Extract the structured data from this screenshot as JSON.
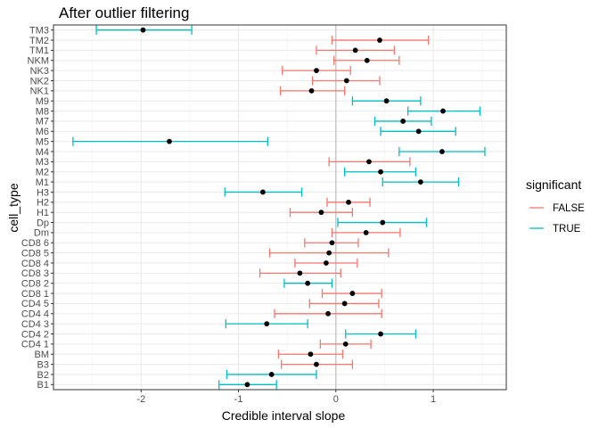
{
  "chart_data": {
    "type": "errorbar",
    "title": "After outlier filtering",
    "xlabel": "Credible interval slope",
    "ylabel": "cell_type",
    "xlim": [
      -2.9,
      1.75
    ],
    "x_ticks": [
      -2,
      -1,
      0,
      1
    ],
    "x_tick_labels": [
      "-2",
      "-1",
      "0",
      "1"
    ],
    "reference_line_x": 0,
    "grid": true,
    "legend": {
      "title": "significant",
      "position": "right",
      "entries": [
        {
          "label": "FALSE",
          "color": "#f8766d"
        },
        {
          "label": "TRUE",
          "color": "#00bfc4"
        }
      ]
    },
    "point_color": "#000000",
    "categories": [
      "TM3",
      "TM2",
      "TM1",
      "NKM",
      "NK3",
      "NK2",
      "NK1",
      "M9",
      "M8",
      "M7",
      "M6",
      "M5",
      "M4",
      "M3",
      "M2",
      "M1",
      "H3",
      "H2",
      "H1",
      "Dp",
      "Dm",
      "CD8 6",
      "CD8 5",
      "CD8 4",
      "CD8 3",
      "CD8 2",
      "CD8 1",
      "CD4 5",
      "CD4 4",
      "CD4 3",
      "CD4 2",
      "CD4 1",
      "BM",
      "B3",
      "B2",
      "B1"
    ],
    "points": [
      {
        "cell_type": "TM3",
        "estimate": -1.98,
        "lower": -2.46,
        "upper": -1.48,
        "significant": "TRUE"
      },
      {
        "cell_type": "TM2",
        "estimate": 0.45,
        "lower": -0.04,
        "upper": 0.95,
        "significant": "FALSE"
      },
      {
        "cell_type": "TM1",
        "estimate": 0.2,
        "lower": -0.2,
        "upper": 0.6,
        "significant": "FALSE"
      },
      {
        "cell_type": "NKM",
        "estimate": 0.32,
        "lower": -0.02,
        "upper": 0.65,
        "significant": "FALSE"
      },
      {
        "cell_type": "NK3",
        "estimate": -0.2,
        "lower": -0.55,
        "upper": 0.15,
        "significant": "FALSE"
      },
      {
        "cell_type": "NK2",
        "estimate": 0.11,
        "lower": -0.24,
        "upper": 0.45,
        "significant": "FALSE"
      },
      {
        "cell_type": "NK1",
        "estimate": -0.25,
        "lower": -0.57,
        "upper": 0.09,
        "significant": "FALSE"
      },
      {
        "cell_type": "M9",
        "estimate": 0.52,
        "lower": 0.17,
        "upper": 0.87,
        "significant": "TRUE"
      },
      {
        "cell_type": "M8",
        "estimate": 1.1,
        "lower": 0.74,
        "upper": 1.48,
        "significant": "TRUE"
      },
      {
        "cell_type": "M7",
        "estimate": 0.69,
        "lower": 0.4,
        "upper": 0.98,
        "significant": "TRUE"
      },
      {
        "cell_type": "M6",
        "estimate": 0.85,
        "lower": 0.46,
        "upper": 1.23,
        "significant": "TRUE"
      },
      {
        "cell_type": "M5",
        "estimate": -1.71,
        "lower": -2.7,
        "upper": -0.7,
        "significant": "TRUE"
      },
      {
        "cell_type": "M4",
        "estimate": 1.09,
        "lower": 0.65,
        "upper": 1.53,
        "significant": "TRUE"
      },
      {
        "cell_type": "M3",
        "estimate": 0.34,
        "lower": -0.07,
        "upper": 0.76,
        "significant": "FALSE"
      },
      {
        "cell_type": "M2",
        "estimate": 0.46,
        "lower": 0.09,
        "upper": 0.82,
        "significant": "TRUE"
      },
      {
        "cell_type": "M1",
        "estimate": 0.87,
        "lower": 0.48,
        "upper": 1.26,
        "significant": "TRUE"
      },
      {
        "cell_type": "H3",
        "estimate": -0.75,
        "lower": -1.14,
        "upper": -0.35,
        "significant": "TRUE"
      },
      {
        "cell_type": "H2",
        "estimate": 0.13,
        "lower": -0.09,
        "upper": 0.35,
        "significant": "FALSE"
      },
      {
        "cell_type": "H1",
        "estimate": -0.15,
        "lower": -0.47,
        "upper": 0.17,
        "significant": "FALSE"
      },
      {
        "cell_type": "Dp",
        "estimate": 0.48,
        "lower": 0.02,
        "upper": 0.93,
        "significant": "TRUE"
      },
      {
        "cell_type": "Dm",
        "estimate": 0.31,
        "lower": -0.04,
        "upper": 0.66,
        "significant": "FALSE"
      },
      {
        "cell_type": "CD8 6",
        "estimate": -0.04,
        "lower": -0.32,
        "upper": 0.23,
        "significant": "FALSE"
      },
      {
        "cell_type": "CD8 5",
        "estimate": -0.07,
        "lower": -0.68,
        "upper": 0.54,
        "significant": "FALSE"
      },
      {
        "cell_type": "CD8 4",
        "estimate": -0.1,
        "lower": -0.42,
        "upper": 0.22,
        "significant": "FALSE"
      },
      {
        "cell_type": "CD8 3",
        "estimate": -0.37,
        "lower": -0.78,
        "upper": 0.05,
        "significant": "FALSE"
      },
      {
        "cell_type": "CD8 2",
        "estimate": -0.29,
        "lower": -0.53,
        "upper": -0.04,
        "significant": "TRUE"
      },
      {
        "cell_type": "CD8 1",
        "estimate": 0.17,
        "lower": -0.14,
        "upper": 0.47,
        "significant": "FALSE"
      },
      {
        "cell_type": "CD4 5",
        "estimate": 0.09,
        "lower": -0.27,
        "upper": 0.44,
        "significant": "FALSE"
      },
      {
        "cell_type": "CD4 4",
        "estimate": -0.08,
        "lower": -0.63,
        "upper": 0.47,
        "significant": "FALSE"
      },
      {
        "cell_type": "CD4 3",
        "estimate": -0.71,
        "lower": -1.13,
        "upper": -0.29,
        "significant": "TRUE"
      },
      {
        "cell_type": "CD4 2",
        "estimate": 0.46,
        "lower": 0.1,
        "upper": 0.82,
        "significant": "TRUE"
      },
      {
        "cell_type": "CD4 1",
        "estimate": 0.1,
        "lower": -0.16,
        "upper": 0.36,
        "significant": "FALSE"
      },
      {
        "cell_type": "BM",
        "estimate": -0.26,
        "lower": -0.59,
        "upper": 0.07,
        "significant": "FALSE"
      },
      {
        "cell_type": "B3",
        "estimate": -0.2,
        "lower": -0.56,
        "upper": 0.17,
        "significant": "FALSE"
      },
      {
        "cell_type": "B2",
        "estimate": -0.66,
        "lower": -1.12,
        "upper": -0.2,
        "significant": "TRUE"
      },
      {
        "cell_type": "B1",
        "estimate": -0.91,
        "lower": -1.2,
        "upper": -0.61,
        "significant": "TRUE"
      }
    ]
  }
}
